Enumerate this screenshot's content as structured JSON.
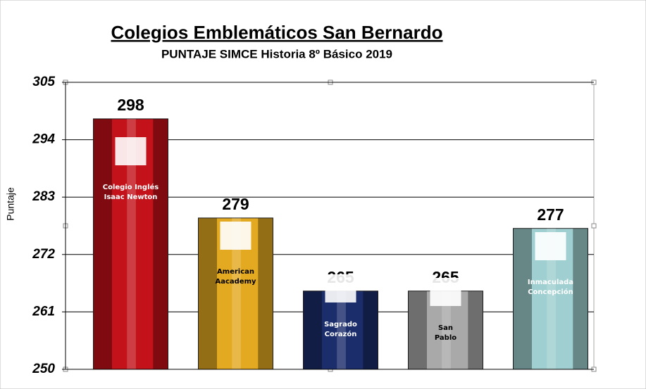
{
  "chart_data": {
    "type": "bar",
    "title": "Colegios Emblemáticos San Bernardo",
    "subtitle": "PUNTAJE SIMCE Historia 8º Básico 2019",
    "y_label": "Puntaje",
    "categories": [
      "Colegio Inglés\nIsaac Newton",
      "American\nAacademy",
      "Sagrado\nCorazón",
      "San\nPablo",
      "Inmaculada\nConcepción"
    ],
    "values": [
      298,
      279,
      265,
      265,
      277
    ],
    "colors": [
      "#c4121b",
      "#e3a920",
      "#1b2d6b",
      "#a9a9a9",
      "#9fcfd0"
    ],
    "label_colors": [
      "#ffffff",
      "#000000",
      "#ffffff",
      "#000000",
      "#ffffff"
    ],
    "ylim": [
      250,
      305
    ],
    "yticks": [
      250,
      261,
      272,
      283,
      294,
      305
    ],
    "grid": true
  }
}
